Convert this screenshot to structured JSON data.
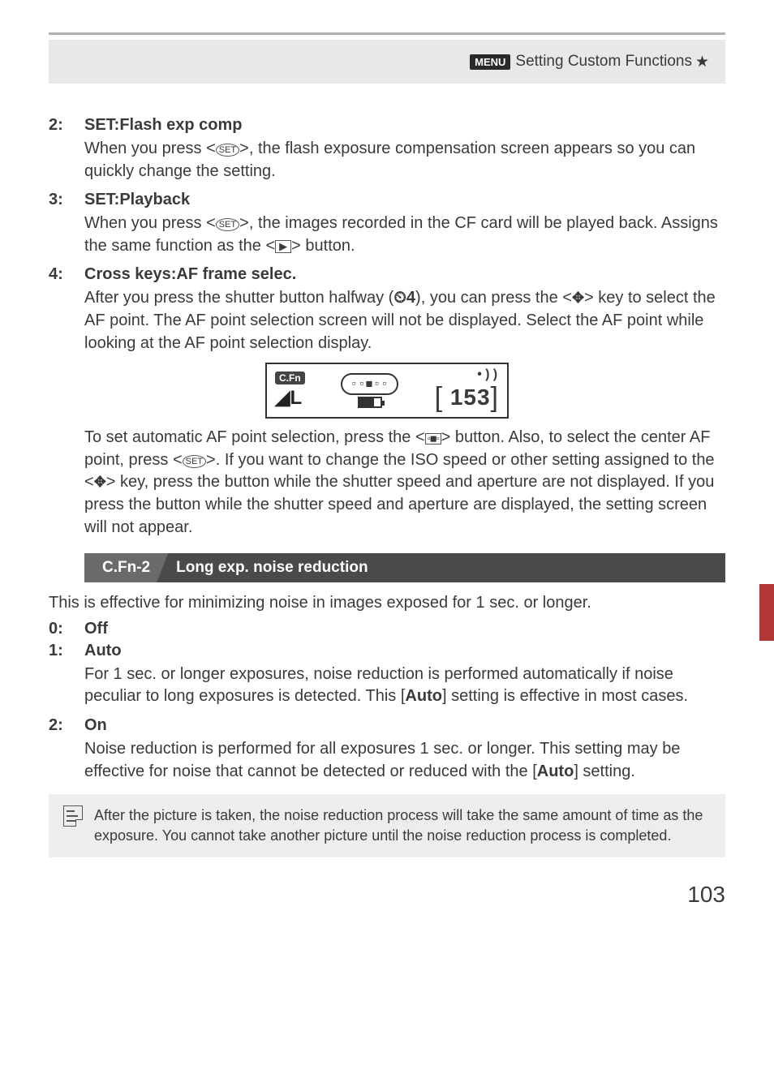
{
  "header": {
    "menu_label": "MENU",
    "title": "Setting Custom Functions",
    "star": "★"
  },
  "sections": [
    {
      "num": "2:",
      "title": "SET:Flash exp comp",
      "body_parts": [
        "When you press <",
        {
          "icon": "set"
        },
        ">, the flash exposure compensation screen appears so you can quickly change the setting."
      ]
    },
    {
      "num": "3:",
      "title": "SET:Playback",
      "body_parts": [
        "When you press <",
        {
          "icon": "set"
        },
        ">, the images recorded in the CF card will be played back. Assigns the same function as the <",
        {
          "icon": "play"
        },
        "> button."
      ]
    },
    {
      "num": "4:",
      "title": "Cross keys:AF frame selec.",
      "body_parts": [
        "After you press the shutter button halfway (",
        {
          "icon": "timer",
          "text": "⏲4"
        },
        "), you can press the <",
        {
          "icon": "cross",
          "text": "✥"
        },
        "> key to select the AF point. The AF point selection screen will not be displayed. Select the AF point while looking at the AF point selection display."
      ],
      "after_figure_parts": [
        "To set automatic AF point selection, press the <",
        {
          "icon": "grid",
          "text": "⊞"
        },
        "> button. Also, to select the center AF point, press <",
        {
          "icon": "set"
        },
        ">.",
        " If you want to change the ISO speed or other setting assigned to the <",
        {
          "icon": "cross",
          "text": "✥"
        },
        "> key, press the button while the shutter speed and aperture are not displayed. If you press the button while the shutter speed and aperture are displayed, the setting screen will not appear."
      ]
    }
  ],
  "lcd": {
    "cfn": "C.Fn",
    "rec": "◢L",
    "af_points": "▫▫◼▫▫",
    "beep": "•))",
    "shots": "153"
  },
  "cfn2": {
    "label": "C.Fn-2",
    "title": "Long exp. noise reduction",
    "intro": "This is effective for minimizing noise in images exposed for 1 sec. or longer.",
    "items": [
      {
        "num": "0:",
        "title": "Off",
        "body": ""
      },
      {
        "num": "1:",
        "title": "Auto",
        "body_parts": [
          "For 1 sec. or longer exposures, noise reduction is performed automatically if noise peculiar to long exposures is detected. This [",
          {
            "bold": "Auto"
          },
          "] setting is effective in most cases."
        ]
      },
      {
        "num": "2:",
        "title": "On",
        "body_parts": [
          "Noise reduction is performed for all exposures 1 sec. or longer. This setting may be effective for noise that cannot be detected or reduced with the [",
          {
            "bold": "Auto"
          },
          "] setting."
        ]
      }
    ]
  },
  "note": "After the picture is taken, the noise reduction process will take the same amount of time as the exposure. You cannot take another picture until the noise reduction process is completed.",
  "page_number": "103",
  "colors": {
    "text": "#3a3a3a",
    "header_bg": "#e8e8e8",
    "header_line": "#b0b0b0",
    "cfn_bar_bg": "#4a4a4a",
    "cfn_label_bg": "#6a6a6a",
    "note_bg": "#ededed",
    "side_tab": "#b33939"
  }
}
